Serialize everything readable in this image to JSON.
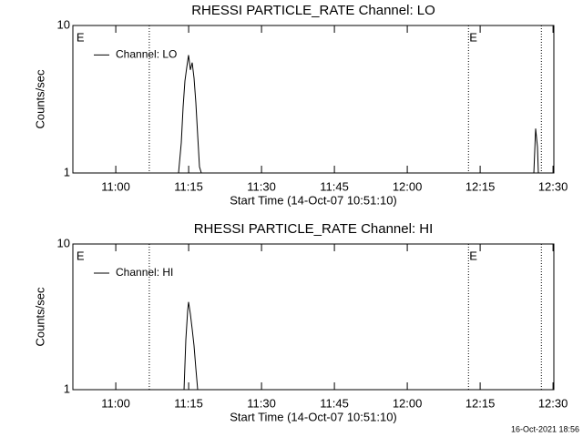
{
  "chart_data": [
    {
      "type": "line",
      "title": "RHESSI PARTICLE_RATE Channel: LO",
      "xlabel": "Start Time (14-Oct-07 10:51:10)",
      "ylabel": "Counts/sec",
      "log_y": true,
      "legend": "upper left",
      "xlim": [
        651.17,
        750.17
      ],
      "ylim": [
        1,
        10
      ],
      "xticks": [
        {
          "value": 660,
          "label": "11:00"
        },
        {
          "value": 675,
          "label": "11:15"
        },
        {
          "value": 690,
          "label": "11:30"
        },
        {
          "value": 705,
          "label": "11:45"
        },
        {
          "value": 720,
          "label": "12:00"
        },
        {
          "value": 735,
          "label": "12:15"
        },
        {
          "value": 750,
          "label": "12:30"
        }
      ],
      "yticks": [
        1,
        10
      ],
      "vlines": [
        666.9,
        732.6,
        747.6
      ],
      "annotations": [
        {
          "text": "E",
          "x": 651.7
        },
        {
          "text": "E",
          "x": 732.6
        }
      ],
      "series": [
        {
          "name": "Channel: LO",
          "color": "#000000",
          "x": [
            672.92,
            673.48,
            673.86,
            674.23,
            674.61,
            674.98,
            675.36,
            675.73,
            676.11,
            676.48,
            676.86,
            677.23,
            677.61,
            700,
            746.05,
            746.42,
            746.8,
            746.98
          ],
          "values": [
            1,
            1.6,
            2.8,
            4.2,
            5.2,
            6.3,
            5.0,
            5.6,
            4.4,
            3.0,
            1.8,
            1.1,
            1,
            null,
            1,
            2.0,
            1.5,
            1
          ]
        }
      ]
    },
    {
      "type": "line",
      "title": "RHESSI PARTICLE_RATE Channel: HI",
      "xlabel": "Start Time (14-Oct-07 10:51:10)",
      "ylabel": "Counts/sec",
      "log_y": true,
      "legend": "upper left",
      "xlim": [
        651.17,
        750.17
      ],
      "ylim": [
        1,
        10
      ],
      "xticks": [
        {
          "value": 660,
          "label": "11:00"
        },
        {
          "value": 675,
          "label": "11:15"
        },
        {
          "value": 690,
          "label": "11:30"
        },
        {
          "value": 705,
          "label": "11:45"
        },
        {
          "value": 720,
          "label": "12:00"
        },
        {
          "value": 735,
          "label": "12:15"
        },
        {
          "value": 750,
          "label": "12:30"
        }
      ],
      "yticks": [
        1,
        10
      ],
      "vlines": [
        666.9,
        732.6,
        747.6
      ],
      "annotations": [
        {
          "text": "E",
          "x": 651.7
        },
        {
          "text": "E",
          "x": 732.6
        }
      ],
      "series": [
        {
          "name": "Channel: HI",
          "color": "#000000",
          "x": [
            674.05,
            674.42,
            674.8,
            674.98,
            675.36,
            675.73,
            676.11,
            676.48,
            676.86
          ],
          "values": [
            1,
            2.2,
            3.5,
            4.0,
            3.3,
            2.6,
            2.0,
            1.4,
            1
          ]
        }
      ]
    }
  ],
  "footer": "16-Oct-2021 18:56"
}
